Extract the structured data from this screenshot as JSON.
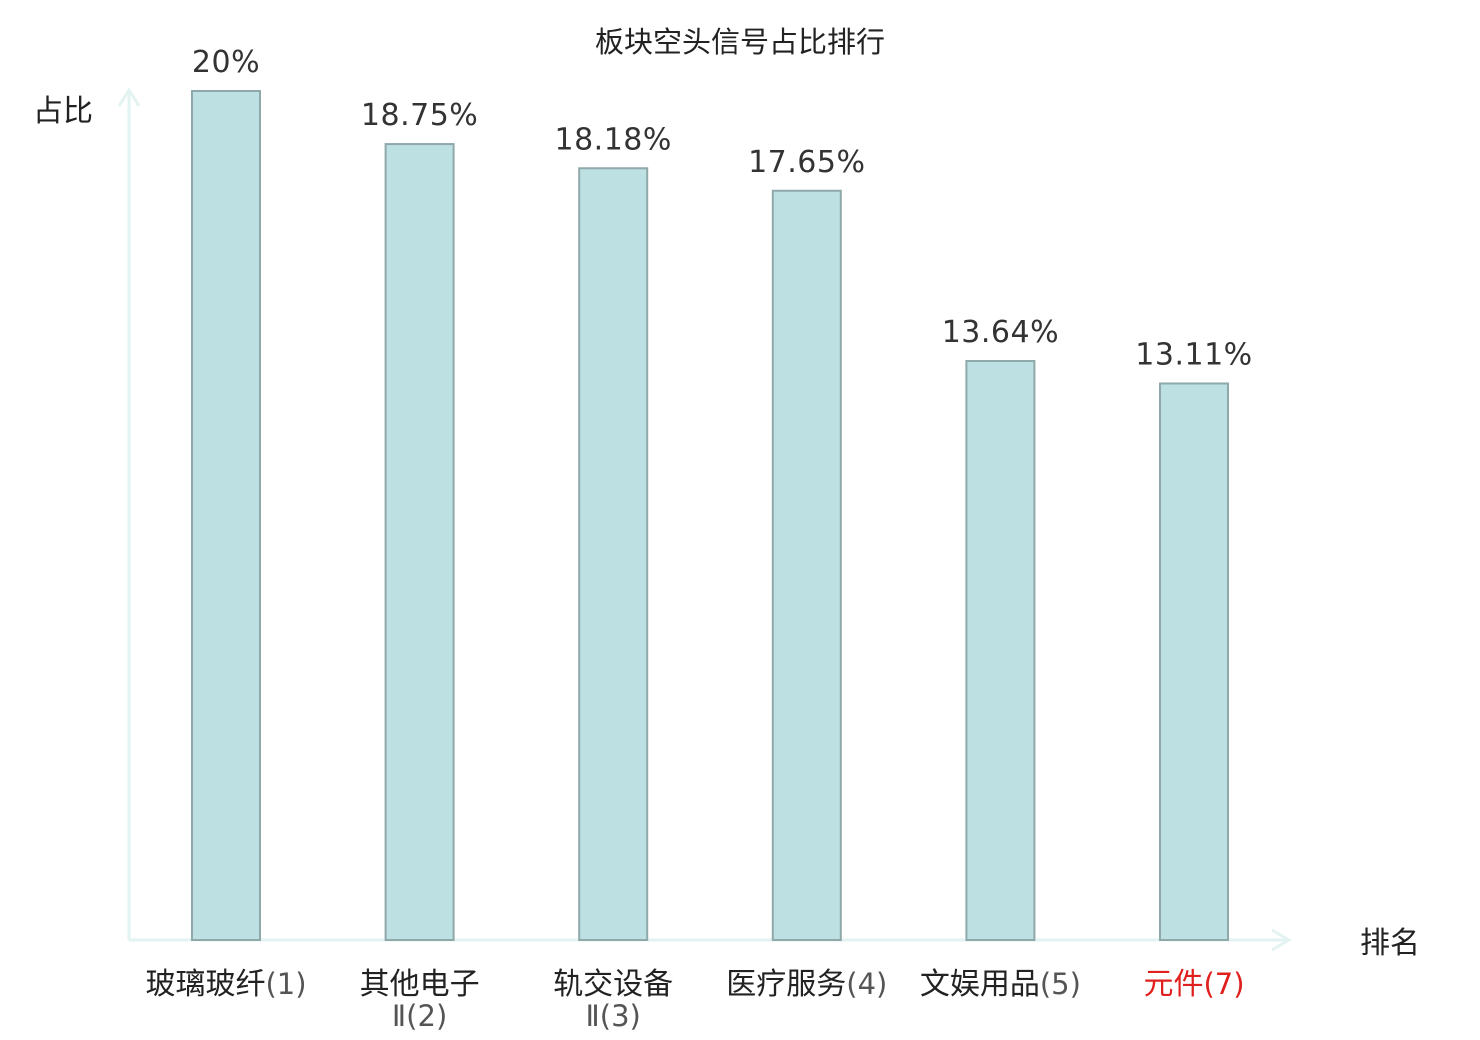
{
  "chart_data": {
    "type": "bar",
    "title": "板块空头信号占比排行",
    "ylabel": "占比",
    "xlabel": "排名",
    "ylim": [
      0,
      20
    ],
    "categories": [
      {
        "name": "玻璃玻纤",
        "rank": "(1)",
        "label_lines": [
          "玻璃玻纤(1)"
        ],
        "highlight": false
      },
      {
        "name": "其他电子Ⅱ",
        "rank": "(2)",
        "label_lines": [
          "其他电子",
          "Ⅱ(2)"
        ],
        "highlight": false
      },
      {
        "name": "轨交设备Ⅱ",
        "rank": "(3)",
        "label_lines": [
          "轨交设备",
          "Ⅱ(3)"
        ],
        "highlight": false
      },
      {
        "name": "医疗服务",
        "rank": "(4)",
        "label_lines": [
          "医疗服务(4)"
        ],
        "highlight": false
      },
      {
        "name": "文娱用品",
        "rank": "(5)",
        "label_lines": [
          "文娱用品(5)"
        ],
        "highlight": false
      },
      {
        "name": "元件",
        "rank": "(7)",
        "label_lines": [
          "元件(7)"
        ],
        "highlight": true
      }
    ],
    "values": [
      20,
      18.75,
      18.18,
      17.65,
      13.64,
      13.11
    ],
    "value_labels": [
      "20%",
      "18.75%",
      "18.18%",
      "17.65%",
      "13.64%",
      "13.11%"
    ],
    "grid": false,
    "colors": {
      "bar_fill": "#bde0e2",
      "bar_stroke": "#8fa8aa",
      "axis": "#e3f3f1",
      "highlight_text": "#e0201e"
    }
  }
}
